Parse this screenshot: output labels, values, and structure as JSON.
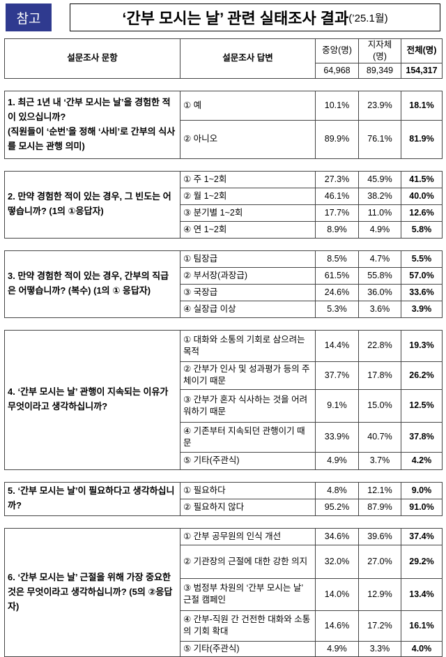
{
  "header": {
    "badge": "참고",
    "title": "‘간부 모시는 날’ 관련 실태조사 결과",
    "date": "(’25.1월)"
  },
  "table": {
    "columns": [
      "설문조사 문항",
      "설문조사 답변",
      "중앙(명)",
      "지자체(명)",
      "전체(명)"
    ],
    "totals": [
      "64,968",
      "89,349",
      "154,317"
    ],
    "questions": [
      {
        "text": [
          "1. 최근 1년 내 ‘간부 모시는 날’을 경험한 적이 있으십니까?",
          "(직원들이 ‘순번’을 정해 ‘사비’로 간부의 식사를 모시는 관행 의미)"
        ],
        "answers": [
          {
            "label": "① 예",
            "central": "10.1%",
            "local": "23.9%",
            "total": "18.1%"
          },
          {
            "label": "② 아니오",
            "central": "89.9%",
            "local": "76.1%",
            "total": "81.9%"
          }
        ]
      },
      {
        "text": [
          "2. 만약 경험한 적이 있는 경우, 그 빈도는 어떻습니까? (1의 ①응답자)"
        ],
        "answers": [
          {
            "label": "① 주 1~2회",
            "central": "27.3%",
            "local": "45.9%",
            "total": "41.5%"
          },
          {
            "label": "② 월 1~2회",
            "central": "46.1%",
            "local": "38.2%",
            "total": "40.0%"
          },
          {
            "label": "③ 분기별 1~2회",
            "central": "17.7%",
            "local": "11.0%",
            "total": "12.6%"
          },
          {
            "label": "④ 연 1~2회",
            "central": "8.9%",
            "local": "4.9%",
            "total": "5.8%"
          }
        ]
      },
      {
        "text": [
          "3. 만약 경험한 적이 있는 경우, 간부의 직급은 어떻습니까? (복수) (1의 ① 응답자)"
        ],
        "answers": [
          {
            "label": "① 팀장급",
            "central": "8.5%",
            "local": "4.7%",
            "total": "5.5%"
          },
          {
            "label": "② 부서장(과장급)",
            "central": "61.5%",
            "local": "55.8%",
            "total": "57.0%"
          },
          {
            "label": "③ 국장급",
            "central": "24.6%",
            "local": "36.0%",
            "total": "33.6%"
          },
          {
            "label": "④ 실장급 이상",
            "central": "5.3%",
            "local": "3.6%",
            "total": "3.9%"
          }
        ]
      },
      {
        "text": [
          "4. ‘간부 모시는 날’ 관행이 지속되는 이유가 무엇이라고 생각하십니까?"
        ],
        "answers": [
          {
            "label": "① 대화와 소통의 기회로 삼으려는 목적",
            "central": "14.4%",
            "local": "22.8%",
            "total": "19.3%"
          },
          {
            "label": "② 간부가 인사 및 성과평가 등의 주체이기 때문",
            "central": "37.7%",
            "local": "17.8%",
            "total": "26.2%"
          },
          {
            "label": "③ 간부가 혼자 식사하는 것을 어려워하기 때문",
            "central": "9.1%",
            "local": "15.0%",
            "total": "12.5%"
          },
          {
            "label": "④ 기존부터 지속되던 관행이기 때문",
            "central": "33.9%",
            "local": "40.7%",
            "total": "37.8%"
          },
          {
            "label": "⑤ 기타(주관식)",
            "central": "4.9%",
            "local": "3.7%",
            "total": "4.2%"
          }
        ]
      },
      {
        "text": [
          "5. ‘간부 모시는 날’이 필요하다고 생각하십니까?"
        ],
        "answers": [
          {
            "label": "① 필요하다",
            "central": "4.8%",
            "local": "12.1%",
            "total": "9.0%"
          },
          {
            "label": "② 필요하지 않다",
            "central": "95.2%",
            "local": "87.9%",
            "total": "91.0%"
          }
        ]
      },
      {
        "text": [
          "6. ‘간부 모시는 날’ 근절을 위해 가장 중요한 것은 무엇이라고 생각하십니까? (5의 ②응답자)"
        ],
        "answers": [
          {
            "label": "① 간부 공무원의 인식 개선",
            "central": "34.6%",
            "local": "39.6%",
            "total": "37.4%"
          },
          {
            "label": "② 기관장의 근절에 대한 강한 의지",
            "central": "32.0%",
            "local": "27.0%",
            "total": "29.2%"
          },
          {
            "label": "③ 범정부 차원의 ‘간부 모시는 날’ 근절 캠페인",
            "central": "14.0%",
            "local": "12.9%",
            "total": "13.4%"
          },
          {
            "label": "④ 간부-직원 간 건전한 대화와 소통의 기회 확대",
            "central": "14.6%",
            "local": "17.2%",
            "total": "16.1%"
          },
          {
            "label": "⑤ 기타(주관식)",
            "central": "4.9%",
            "local": "3.3%",
            "total": "4.0%"
          }
        ]
      }
    ]
  }
}
